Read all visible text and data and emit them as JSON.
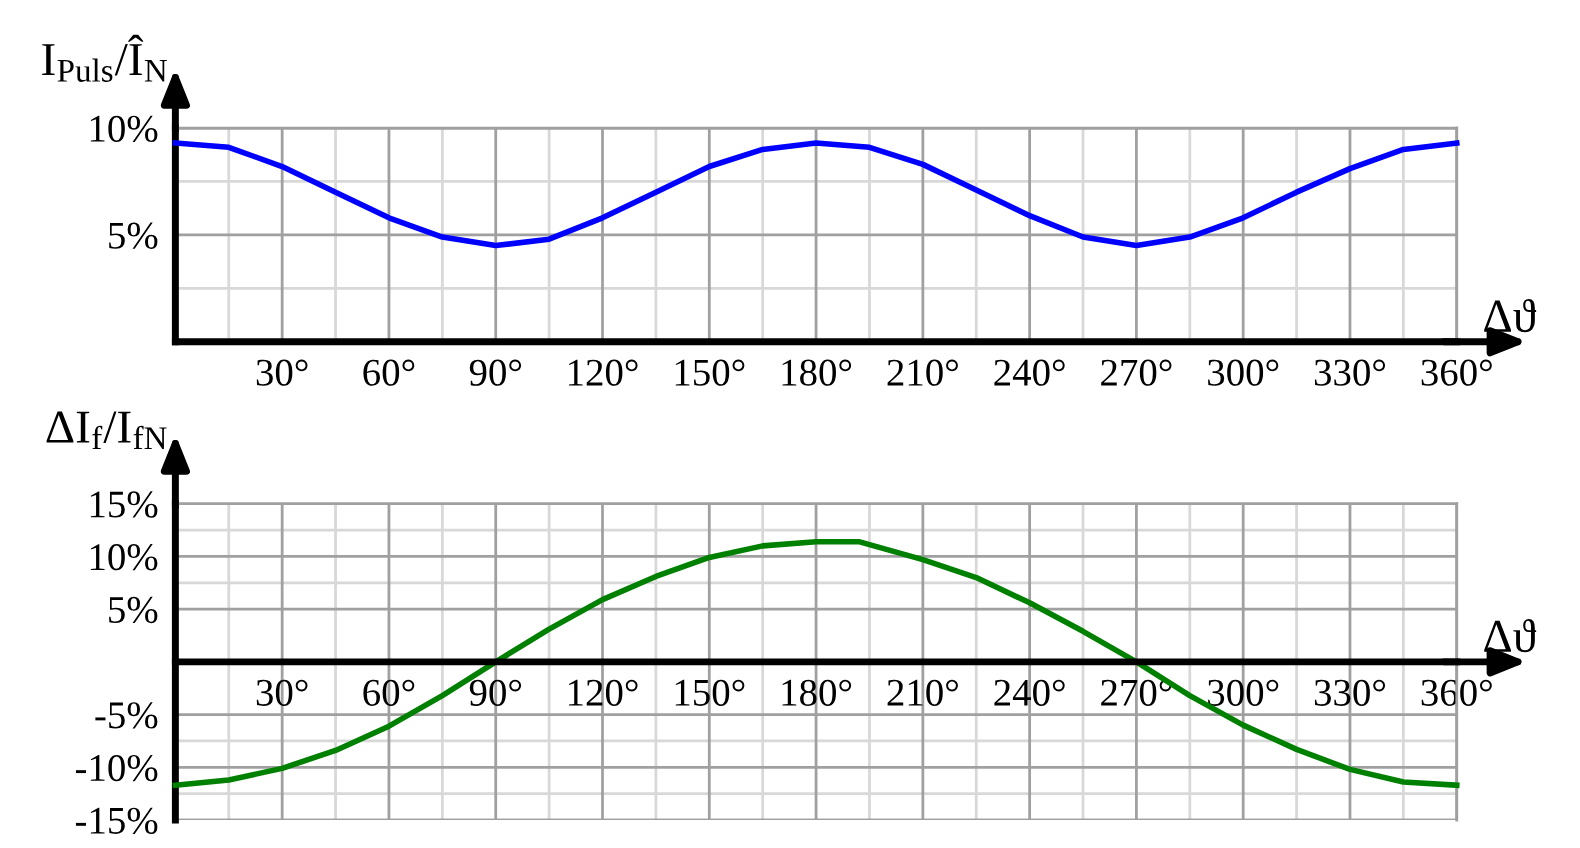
{
  "chart_data": [
    {
      "type": "line",
      "ylabel": "I$_{Puls}$/Î$_{N}$",
      "xlabel": "Δϑ",
      "grid": true,
      "x": [
        0,
        15,
        30,
        45,
        60,
        75,
        90,
        105,
        120,
        135,
        150,
        165,
        180,
        195,
        210,
        225,
        240,
        255,
        270,
        285,
        300,
        315,
        330,
        345,
        360
      ],
      "series": [
        {
          "color": "#0000ff",
          "values": [
            9.3,
            9.1,
            8.2,
            7.0,
            5.8,
            4.9,
            4.5,
            4.8,
            5.8,
            7.0,
            8.2,
            9.0,
            9.3,
            9.1,
            8.3,
            7.1,
            5.9,
            4.9,
            4.5,
            4.9,
            5.8,
            7.0,
            8.1,
            9.0,
            9.3
          ]
        }
      ],
      "xlim": [
        0,
        360
      ],
      "xticks": [
        {
          "value": 30,
          "label": "30°"
        },
        {
          "value": 60,
          "label": "60°"
        },
        {
          "value": 90,
          "label": "90°"
        },
        {
          "value": 120,
          "label": "120°"
        },
        {
          "value": 150,
          "label": "150°"
        },
        {
          "value": 180,
          "label": "180°"
        },
        {
          "value": 210,
          "label": "210°"
        },
        {
          "value": 240,
          "label": "240°"
        },
        {
          "value": 270,
          "label": "270°"
        },
        {
          "value": 300,
          "label": "300°"
        },
        {
          "value": 330,
          "label": "330°"
        },
        {
          "value": 360,
          "label": "360°"
        }
      ],
      "ylim": [
        0,
        10
      ],
      "yticks": [
        {
          "value": 5,
          "label": "5%"
        },
        {
          "value": 10,
          "label": "10%"
        }
      ]
    },
    {
      "type": "line",
      "ylabel": "ΔI$_{f}$/I$_{fN}$",
      "xlabel": "Δϑ",
      "grid": true,
      "x": [
        0,
        15,
        30,
        45,
        60,
        75,
        90,
        105,
        120,
        135,
        150,
        165,
        180,
        192,
        210,
        225,
        240,
        255,
        270,
        285,
        300,
        315,
        330,
        345,
        360
      ],
      "series": [
        {
          "color": "#008000",
          "values": [
            -11.7,
            -11.2,
            -10.1,
            -8.4,
            -6.1,
            -3.2,
            0,
            3.1,
            5.9,
            8.1,
            9.9,
            11.0,
            11.4,
            11.4,
            9.7,
            8.0,
            5.6,
            2.9,
            0,
            -3.2,
            -6.0,
            -8.3,
            -10.2,
            -11.4,
            -11.7
          ]
        }
      ],
      "xlim": [
        0,
        360
      ],
      "xticks": [
        {
          "value": 30,
          "label": "30°"
        },
        {
          "value": 60,
          "label": "60°"
        },
        {
          "value": 90,
          "label": "90°"
        },
        {
          "value": 120,
          "label": "120°"
        },
        {
          "value": 150,
          "label": "150°"
        },
        {
          "value": 180,
          "label": "180°"
        },
        {
          "value": 210,
          "label": "210°"
        },
        {
          "value": 240,
          "label": "240°"
        },
        {
          "value": 270,
          "label": "270°"
        },
        {
          "value": 300,
          "label": "300°"
        },
        {
          "value": 330,
          "label": "330°"
        },
        {
          "value": 360,
          "label": "360°"
        }
      ],
      "ylim": [
        -15,
        15
      ],
      "yticks": [
        {
          "value": -15,
          "label": "-15%"
        },
        {
          "value": -10,
          "label": "-10%"
        },
        {
          "value": -5,
          "label": "-5%"
        },
        {
          "value": 5,
          "label": "5%"
        },
        {
          "value": 10,
          "label": "10%"
        },
        {
          "value": 15,
          "label": "15%"
        }
      ]
    }
  ]
}
